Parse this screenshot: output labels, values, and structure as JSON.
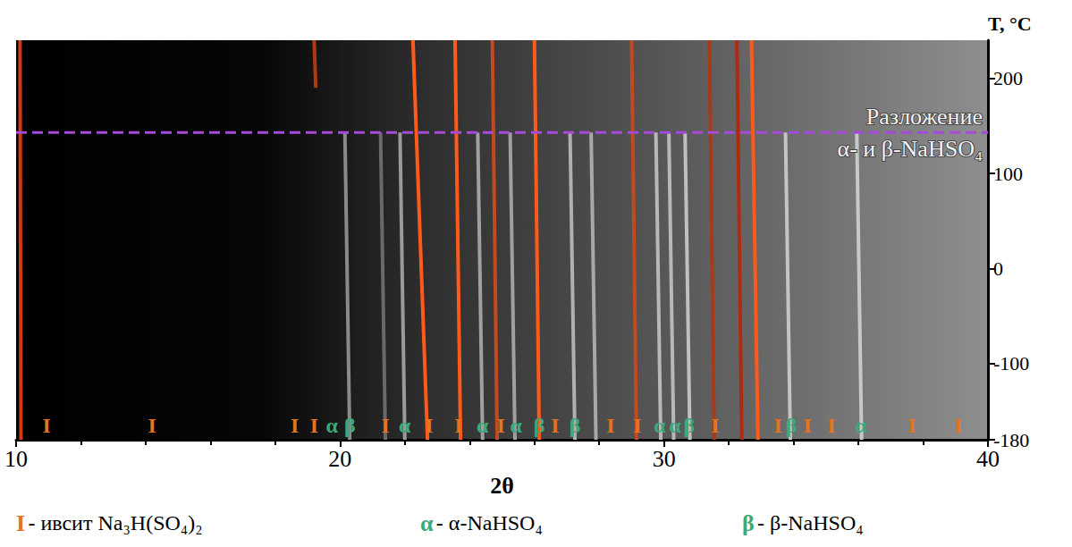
{
  "chart_data": {
    "type": "line",
    "xlabel": "2θ",
    "ylabel": "T, °C",
    "xlim": [
      10,
      40
    ],
    "xticks": [
      10,
      20,
      30,
      40
    ],
    "ylim": [
      -180,
      240
    ],
    "yticks": [
      -180,
      -100,
      0,
      100,
      200
    ],
    "peaks": [
      {
        "x": [
          10.15,
          10.12
        ],
        "t": [
          -180,
          240
        ],
        "color": "#d03a10"
      },
      {
        "x": [
          19.25,
          19.2
        ],
        "t": [
          190,
          240
        ],
        "color": "#b03a10"
      },
      {
        "x": [
          22.7,
          22.25
        ],
        "t": [
          -180,
          240
        ],
        "color": "#ff5a1a"
      },
      {
        "x": [
          23.72,
          23.55
        ],
        "t": [
          -180,
          240
        ],
        "color": "#ff5a1a"
      },
      {
        "x": [
          24.85,
          24.7
        ],
        "t": [
          -180,
          240
        ],
        "color": "#c24a1e"
      },
      {
        "x": [
          26.15,
          26.0
        ],
        "t": [
          -180,
          240
        ],
        "color": "#ff5a1a"
      },
      {
        "x": [
          29.15,
          29.0
        ],
        "t": [
          -180,
          240
        ],
        "color": "#c24a1e"
      },
      {
        "x": [
          31.55,
          31.4
        ],
        "t": [
          -180,
          240
        ],
        "color": "#a83a18"
      },
      {
        "x": [
          32.4,
          32.25
        ],
        "t": [
          -180,
          240
        ],
        "color": "#b02a10"
      },
      {
        "x": [
          32.9,
          32.7
        ],
        "t": [
          -180,
          240
        ],
        "color": "#ff5a1a"
      },
      {
        "x": [
          20.3,
          20.15
        ],
        "t": [
          -180,
          143
        ],
        "color": "#8a8a8a"
      },
      {
        "x": [
          21.4,
          21.25
        ],
        "t": [
          -180,
          143
        ],
        "color": "#6a6a6a"
      },
      {
        "x": [
          22.0,
          21.85
        ],
        "t": [
          -180,
          143
        ],
        "color": "#9a9a9a"
      },
      {
        "x": [
          24.4,
          24.25
        ],
        "t": [
          -180,
          143
        ],
        "color": "#a0a0a0"
      },
      {
        "x": [
          25.4,
          25.25
        ],
        "t": [
          -180,
          143
        ],
        "color": "#a0a0a0"
      },
      {
        "x": [
          27.25,
          27.1
        ],
        "t": [
          -180,
          143
        ],
        "color": "#b0b0b0"
      },
      {
        "x": [
          27.9,
          27.75
        ],
        "t": [
          -180,
          143
        ],
        "color": "#a8a8a8"
      },
      {
        "x": [
          29.9,
          29.75
        ],
        "t": [
          -180,
          143
        ],
        "color": "#b8b8b8"
      },
      {
        "x": [
          30.3,
          30.15
        ],
        "t": [
          -180,
          143
        ],
        "color": "#b8b8b8"
      },
      {
        "x": [
          30.8,
          30.65
        ],
        "t": [
          -180,
          143
        ],
        "color": "#c0c0c0"
      },
      {
        "x": [
          33.9,
          33.75
        ],
        "t": [
          -180,
          143
        ],
        "color": "#c4c4c4"
      },
      {
        "x": [
          36.1,
          35.95
        ],
        "t": [
          -180,
          143
        ],
        "color": "#c8c8c8"
      }
    ],
    "annotation": {
      "t": 143,
      "text": [
        "Разложение",
        "α- и β-NaHSO₄"
      ],
      "color": "#a64ad9",
      "line_style": "dashed"
    },
    "phases": [
      {
        "label": "I",
        "text": "- ивсит Na₃H(SO₄)₂",
        "color": "#e8731e"
      },
      {
        "label": "α",
        "text": "- α-NaHSO₄",
        "color": "#3aaa7a"
      },
      {
        "label": "β",
        "text": "- β-NaHSO₄",
        "color": "#3aaa7a"
      }
    ],
    "phase_marks": [
      {
        "x": 10.94,
        "label": "I"
      },
      {
        "x": 14.2,
        "label": "I"
      },
      {
        "x": 18.6,
        "label": "I"
      },
      {
        "x": 19.2,
        "label": "I"
      },
      {
        "x": 19.75,
        "label": "α"
      },
      {
        "x": 20.3,
        "label": "β"
      },
      {
        "x": 21.4,
        "label": "I"
      },
      {
        "x": 22.0,
        "label": "α"
      },
      {
        "x": 22.75,
        "label": "I"
      },
      {
        "x": 23.66,
        "label": "I"
      },
      {
        "x": 24.4,
        "label": "α"
      },
      {
        "x": 24.96,
        "label": "I"
      },
      {
        "x": 25.43,
        "label": "α"
      },
      {
        "x": 26.15,
        "label": "β"
      },
      {
        "x": 26.64,
        "label": "I"
      },
      {
        "x": 27.25,
        "label": "β"
      },
      {
        "x": 28.35,
        "label": "I"
      },
      {
        "x": 29.18,
        "label": "I"
      },
      {
        "x": 29.87,
        "label": "α"
      },
      {
        "x": 30.34,
        "label": "α"
      },
      {
        "x": 30.78,
        "label": "β"
      },
      {
        "x": 31.58,
        "label": "I"
      },
      {
        "x": 33.52,
        "label": "I"
      },
      {
        "x": 33.93,
        "label": "β"
      },
      {
        "x": 34.43,
        "label": "I"
      },
      {
        "x": 35.17,
        "label": "I"
      },
      {
        "x": 36.08,
        "label": "α"
      },
      {
        "x": 37.66,
        "label": "I"
      },
      {
        "x": 39.09,
        "label": "I"
      }
    ]
  }
}
